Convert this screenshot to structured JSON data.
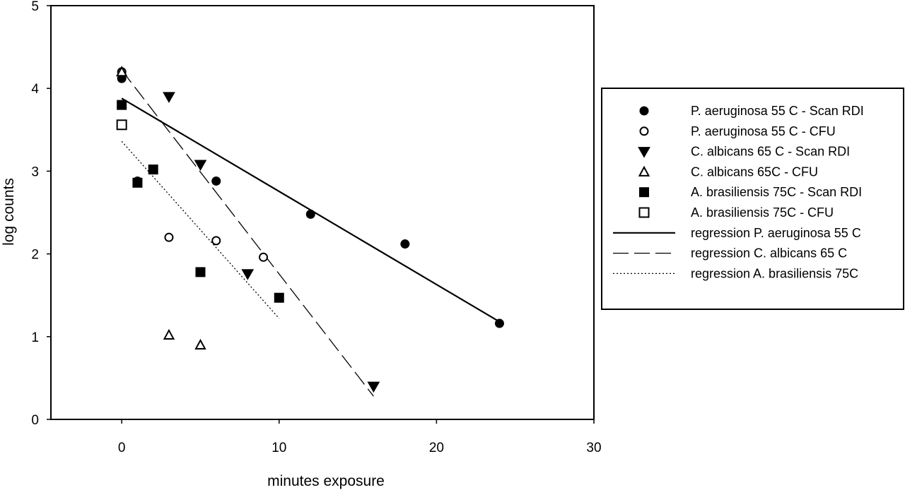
{
  "chart_data": {
    "type": "scatter",
    "xlabel": "minutes exposure",
    "ylabel": "log counts",
    "xlim": [
      -4.5,
      30
    ],
    "ylim": [
      0,
      5
    ],
    "x_ticks": [
      0,
      10,
      20,
      30
    ],
    "y_ticks": [
      0,
      1,
      2,
      3,
      4,
      5
    ],
    "grid": false,
    "legend_position": "right",
    "series": [
      {
        "name": "P. aeruginosa 55 C - Scan RDI",
        "marker": "circle-filled",
        "points": [
          [
            0,
            4.12
          ],
          [
            6,
            2.88
          ],
          [
            12,
            2.48
          ],
          [
            18,
            2.12
          ],
          [
            24,
            1.16
          ]
        ]
      },
      {
        "name": "P. aeruginosa 55 C - CFU",
        "marker": "circle-open",
        "points": [
          [
            0,
            4.2
          ],
          [
            1,
            2.88
          ],
          [
            3,
            2.2
          ],
          [
            6,
            2.16
          ],
          [
            9,
            1.96
          ]
        ]
      },
      {
        "name": "C. albicans 65 C - Scan RDI",
        "marker": "triangle-down-filled",
        "points": [
          [
            3,
            3.9
          ],
          [
            5,
            3.08
          ],
          [
            8,
            1.76
          ],
          [
            16,
            0.4
          ]
        ]
      },
      {
        "name": "C. albicans 65C - CFU",
        "marker": "triangle-up-open",
        "points": [
          [
            0,
            4.2
          ],
          [
            3,
            1.02
          ],
          [
            5,
            0.9
          ]
        ]
      },
      {
        "name": "A. brasiliensis 75C - Scan RDI",
        "marker": "square-filled",
        "points": [
          [
            0,
            3.8
          ],
          [
            1,
            2.86
          ],
          [
            2,
            3.02
          ],
          [
            5,
            1.78
          ],
          [
            10,
            1.47
          ]
        ]
      },
      {
        "name": "A. brasiliensis 75C - CFU",
        "marker": "square-open",
        "points": [
          [
            0,
            3.56
          ]
        ]
      }
    ],
    "regressions": [
      {
        "name": "regression P. aeruginosa 55 C",
        "style": "solid",
        "x": [
          0,
          24
        ],
        "y": [
          3.88,
          1.18
        ]
      },
      {
        "name": "regression C. albicans 65 C",
        "style": "dashed",
        "x": [
          0,
          16
        ],
        "y": [
          4.22,
          0.28
        ]
      },
      {
        "name": "regression A. brasiliensis 75C",
        "style": "dotted",
        "x": [
          0,
          10
        ],
        "y": [
          3.36,
          1.22
        ]
      }
    ]
  }
}
